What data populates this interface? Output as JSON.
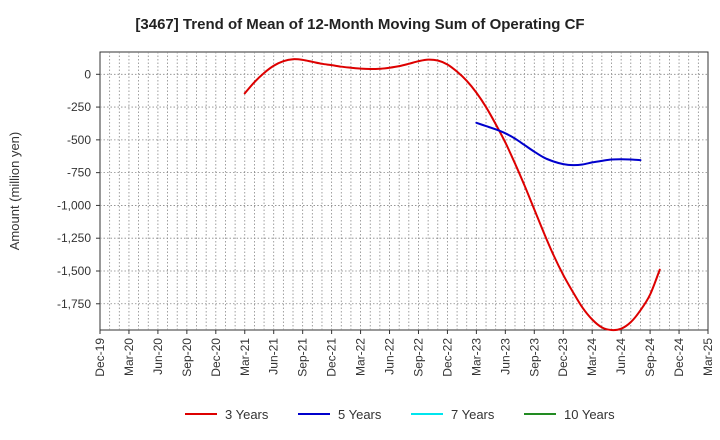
{
  "chart_data": {
    "type": "line",
    "title": "[3467]  Trend of Mean of 12-Month Moving Sum of Operating CF",
    "xlabel": "",
    "ylabel": "Amount (million yen)",
    "ylim": [
      -1950,
      170
    ],
    "yticks": [
      0,
      -250,
      -500,
      -750,
      -1000,
      -1250,
      -1500,
      -1750
    ],
    "ytick_labels": [
      "0",
      "-250",
      "-500",
      "-750",
      "-1,000",
      "-1,250",
      "-1,500",
      "-1,750"
    ],
    "x_start": "Dec-19",
    "x_end": "Mar-25",
    "x_tick_labels": [
      "Dec-19",
      "Mar-20",
      "Jun-20",
      "Sep-20",
      "Dec-20",
      "Mar-21",
      "Jun-21",
      "Sep-21",
      "Dec-21",
      "Mar-22",
      "Jun-22",
      "Sep-22",
      "Dec-22",
      "Mar-23",
      "Jun-23",
      "Sep-23",
      "Dec-23",
      "Mar-24",
      "Jun-24",
      "Sep-24",
      "Dec-24",
      "Mar-25"
    ],
    "grid": true,
    "legend_position": "bottom",
    "series": [
      {
        "name": "3 Years",
        "color": "#dd0000",
        "start_month_index": 15,
        "values": [
          -145,
          -60,
          10,
          65,
          100,
          115,
          110,
          95,
          80,
          70,
          58,
          50,
          43,
          40,
          42,
          50,
          62,
          80,
          100,
          112,
          105,
          75,
          20,
          -50,
          -140,
          -250,
          -380,
          -520,
          -680,
          -850,
          -1030,
          -1210,
          -1380,
          -1530,
          -1660,
          -1780,
          -1870,
          -1930,
          -1950,
          -1940,
          -1890,
          -1800,
          -1680,
          -1490
        ]
      },
      {
        "name": "5 Years",
        "color": "#0000cc",
        "start_month_index": 39,
        "values": [
          -370,
          -395,
          -420,
          -450,
          -490,
          -540,
          -590,
          -635,
          -665,
          -685,
          -693,
          -688,
          -672,
          -660,
          -650,
          -648,
          -650,
          -655
        ]
      },
      {
        "name": "7 Years",
        "color": "#00e5ee",
        "start_month_index": null,
        "values": []
      },
      {
        "name": "10 Years",
        "color": "#228b22",
        "start_month_index": null,
        "values": []
      }
    ]
  }
}
